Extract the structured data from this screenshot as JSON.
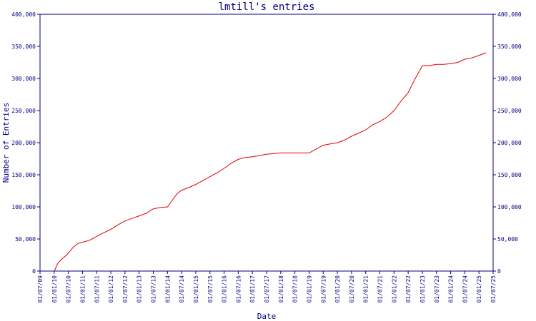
{
  "chart_data": {
    "type": "line",
    "title": "lmtill's entries",
    "xlabel": "Date",
    "ylabel": "Number of Entries",
    "ylim": [
      0,
      400000
    ],
    "y_ticks": [
      0,
      50000,
      100000,
      150000,
      200000,
      250000,
      300000,
      350000,
      400000
    ],
    "y_tick_labels": [
      "0",
      "50,000",
      "100,000",
      "150,000",
      "200,000",
      "250,000",
      "300,000",
      "350,000",
      "400,000"
    ],
    "x_range": [
      "2009-07-01",
      "2025-07-01"
    ],
    "x_tick_labels": [
      "01/07/09",
      "01/01/10",
      "01/07/10",
      "01/01/11",
      "01/07/11",
      "01/01/12",
      "01/07/12",
      "01/01/13",
      "01/07/13",
      "01/01/14",
      "01/07/14",
      "01/01/15",
      "01/07/15",
      "01/01/16",
      "01/07/16",
      "01/01/17",
      "01/07/17",
      "01/01/18",
      "01/07/18",
      "01/01/19",
      "01/07/19",
      "01/01/20",
      "01/07/20",
      "01/01/21",
      "01/07/21",
      "01/01/22",
      "01/07/22",
      "01/01/23",
      "01/07/23",
      "01/01/24",
      "01/07/24",
      "01/01/25",
      "01/07/25"
    ],
    "grid": false,
    "line_color": "#e00000",
    "axis_color": "#000080",
    "series": [
      {
        "x": [
          "2010-01-01",
          "2010-02-15",
          "2010-04-01",
          "2010-06-01",
          "2010-07-01",
          "2010-09-01",
          "2010-11-01",
          "2011-01-01",
          "2011-04-01",
          "2011-07-01",
          "2011-09-01",
          "2012-01-01",
          "2012-04-01",
          "2012-07-01",
          "2012-10-01",
          "2013-01-01",
          "2013-04-01",
          "2013-07-01",
          "2013-10-01",
          "2014-01-01",
          "2014-03-01",
          "2014-05-01",
          "2014-07-01",
          "2014-10-01",
          "2015-01-01",
          "2015-04-01",
          "2015-07-01",
          "2015-10-01",
          "2016-01-01",
          "2016-04-01",
          "2016-07-01",
          "2016-10-01",
          "2017-01-01",
          "2017-04-01",
          "2017-07-01",
          "2017-10-01",
          "2018-01-01",
          "2018-07-01",
          "2019-01-01",
          "2019-04-01",
          "2019-07-01",
          "2019-10-01",
          "2020-01-01",
          "2020-04-01",
          "2020-07-01",
          "2020-10-01",
          "2021-01-01",
          "2021-04-01",
          "2021-07-01",
          "2021-10-01",
          "2022-01-01",
          "2022-04-01",
          "2022-07-01",
          "2022-10-01",
          "2023-01-01",
          "2023-04-01",
          "2023-07-01",
          "2023-10-01",
          "2024-01-01",
          "2024-04-01",
          "2024-07-01",
          "2024-10-01",
          "2025-01-01",
          "2025-04-01"
        ],
        "y": [
          0,
          12000,
          18000,
          24000,
          28000,
          37000,
          43000,
          45000,
          48000,
          54000,
          58000,
          65000,
          72000,
          78000,
          82000,
          86000,
          90000,
          97000,
          99000,
          100000,
          110000,
          120000,
          126000,
          130000,
          135000,
          141000,
          147000,
          153000,
          160000,
          168000,
          174000,
          177000,
          178000,
          180000,
          182000,
          183000,
          184000,
          184000,
          184000,
          190000,
          196000,
          198000,
          200000,
          204000,
          210000,
          215000,
          220000,
          228000,
          233000,
          240000,
          250000,
          265000,
          278000,
          300000,
          320000,
          320000,
          322000,
          322000,
          323000,
          325000,
          330000,
          332000,
          336000,
          340000
        ]
      }
    ]
  }
}
